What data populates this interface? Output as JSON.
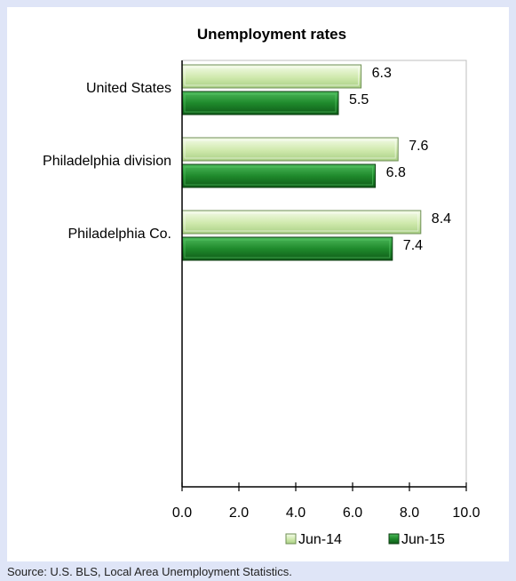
{
  "chart_data": {
    "type": "bar",
    "orientation": "horizontal",
    "title": "Unemployment rates",
    "categories": [
      "United States",
      "Philadelphia division",
      "Philadelphia Co."
    ],
    "series": [
      {
        "name": "Jun-14",
        "values": [
          6.3,
          7.6,
          8.4
        ]
      },
      {
        "name": "Jun-15",
        "values": [
          5.5,
          6.8,
          7.4
        ]
      }
    ],
    "xlim": [
      0,
      10
    ],
    "x_ticks": [
      "0.0",
      "2.0",
      "4.0",
      "6.0",
      "8.0",
      "10.0"
    ],
    "data_labels": [
      [
        "6.3",
        "7.6",
        "8.4"
      ],
      [
        "5.5",
        "6.8",
        "7.4"
      ]
    ],
    "grid": false,
    "legend_position": "bottom-right"
  },
  "colors": {
    "jun14_fill": "#d3ecb2",
    "jun14_stroke": "#6f8f55",
    "jun15_fill": "#1d8a2c",
    "jun15_stroke": "#0c3d12",
    "page_bg": "#dfe5f7"
  },
  "source_note": "Source: U.S. BLS, Local Area Unemployment Statistics."
}
